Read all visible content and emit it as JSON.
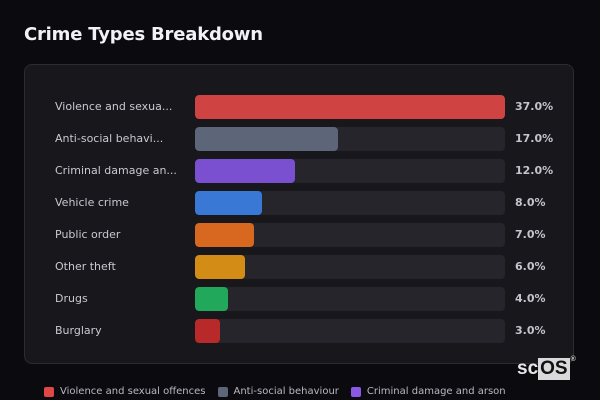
{
  "title": "Crime Types Breakdown",
  "chart_data": {
    "type": "bar",
    "orientation": "horizontal",
    "title": "Crime Types Breakdown",
    "categories": [
      "Violence and sexual offences",
      "Anti-social behaviour",
      "Criminal damage and arson",
      "Vehicle crime",
      "Public order",
      "Other theft",
      "Drugs",
      "Burglary"
    ],
    "display_labels": [
      "Violence and sexua...",
      "Anti-social behavi...",
      "Criminal damage an...",
      "Vehicle crime",
      "Public order",
      "Other theft",
      "Drugs",
      "Burglary"
    ],
    "values": [
      37.0,
      17.0,
      12.0,
      8.0,
      7.0,
      6.0,
      4.0,
      3.0
    ],
    "value_labels": [
      "37.0%",
      "17.0%",
      "12.0%",
      "8.0%",
      "7.0%",
      "6.0%",
      "4.0%",
      "3.0%"
    ],
    "colors": [
      "#d04343",
      "#5c6678",
      "#7a4fd0",
      "#3a78d6",
      "#d8671f",
      "#d38c16",
      "#22a85a",
      "#b82a2a"
    ],
    "xlabel": "",
    "ylabel": "",
    "xlim": [
      0,
      37
    ],
    "grid": false,
    "legend_position": "bottom"
  },
  "rows": [
    {
      "label": "Violence and sexua...",
      "value": "37.0%",
      "pct": 100,
      "color": "#d04343"
    },
    {
      "label": "Anti-social behavi...",
      "value": "17.0%",
      "pct": 46,
      "color": "#5c6678"
    },
    {
      "label": "Criminal damage an...",
      "value": "12.0%",
      "pct": 32.4,
      "color": "#7a4fd0"
    },
    {
      "label": "Vehicle crime",
      "value": "8.0%",
      "pct": 21.6,
      "color": "#3a78d6"
    },
    {
      "label": "Public order",
      "value": "7.0%",
      "pct": 18.9,
      "color": "#d8671f"
    },
    {
      "label": "Other theft",
      "value": "6.0%",
      "pct": 16.2,
      "color": "#d38c16"
    },
    {
      "label": "Drugs",
      "value": "4.0%",
      "pct": 10.8,
      "color": "#22a85a"
    },
    {
      "label": "Burglary",
      "value": "3.0%",
      "pct": 8.1,
      "color": "#b82a2a"
    }
  ],
  "legend": [
    {
      "label": "Violence and sexual offences",
      "color": "#e04848"
    },
    {
      "label": "Anti-social behaviour",
      "color": "#5c6678"
    },
    {
      "label": "Criminal damage and arson",
      "color": "#8a5ae6"
    }
  ],
  "logo": {
    "prefix": "sc",
    "boxed": "OS",
    "reg": "®"
  }
}
